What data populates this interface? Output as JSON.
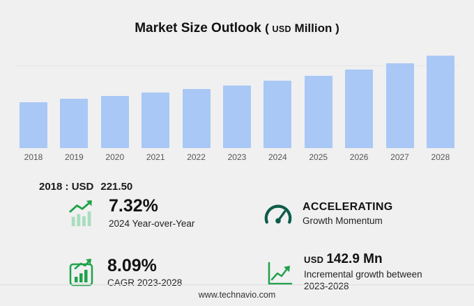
{
  "title": {
    "text": "Market Size Outlook",
    "open": "(",
    "currency": "USD",
    "unit": "Million",
    "close": ")"
  },
  "chart_data": {
    "type": "bar",
    "title": "Market Size Outlook (USD Million)",
    "categories": [
      "2018",
      "2019",
      "2020",
      "2021",
      "2022",
      "2023",
      "2024",
      "2025",
      "2026",
      "2027",
      "2028"
    ],
    "values": [
      221.5,
      235.2,
      249.8,
      265.5,
      282.3,
      300.4,
      322.4,
      346.9,
      375.0,
      407.2,
      443.3
    ],
    "xlabel": "",
    "ylabel": "",
    "ylim": [
      0,
      460
    ],
    "grid": false,
    "legend": "none",
    "bar_color": "#a9c8f5"
  },
  "base_year": {
    "label": "2018 : USD",
    "value": "221.50"
  },
  "stats": [
    {
      "value": "7.32%",
      "label": "2024 Year-over-Year"
    },
    {
      "value": "ACCELERATING",
      "label": "Growth Momentum"
    },
    {
      "value": "8.09%",
      "label": "CAGR 2023-2028"
    },
    {
      "currency": "USD",
      "value": "142.9 Mn",
      "label": "Incremental growth between 2023-2028"
    }
  ],
  "footer": {
    "url": "www.technavio.com"
  },
  "colors": {
    "background": "#f0f0f1",
    "bar": "#a9c8f5",
    "accent_green": "#1fa24a",
    "light_green": "#a9ddbd",
    "gauge_dark": "#0d5c4a",
    "text_dark": "#1a1a1a"
  }
}
